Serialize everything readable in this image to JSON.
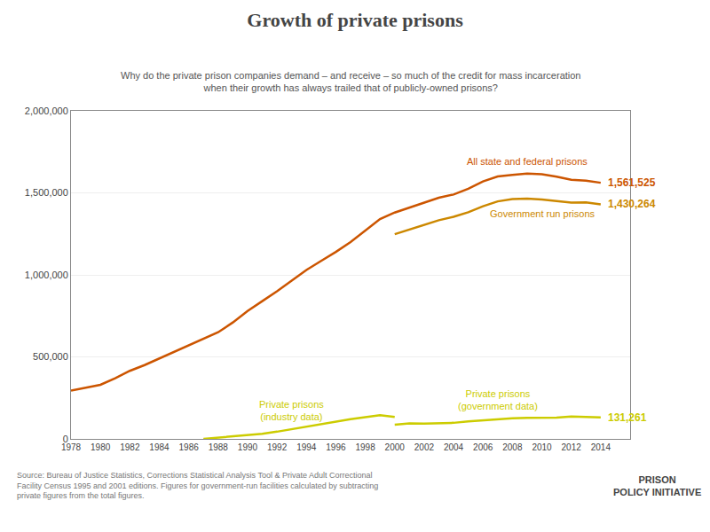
{
  "chart_data": {
    "type": "line",
    "title": "Growth of private prisons",
    "subtitle": "Why do the private prison companies demand – and receive – so much of the credit for mass incarceration\nwhen their growth has always trailed that of publicly-owned prisons?",
    "series": [
      {
        "name": "All state and federal prisons",
        "color": "#cc5500",
        "x": [
          1978,
          1979,
          1980,
          1981,
          1982,
          1983,
          1984,
          1985,
          1986,
          1987,
          1988,
          1989,
          1990,
          1991,
          1992,
          1993,
          1994,
          1995,
          1996,
          1997,
          1998,
          1999,
          2000,
          2001,
          2002,
          2003,
          2004,
          2005,
          2006,
          2007,
          2008,
          2009,
          2010,
          2011,
          2012,
          2013,
          2014
        ],
        "values": [
          294000,
          310000,
          330000,
          370000,
          415000,
          450000,
          490000,
          530000,
          570000,
          610000,
          650000,
          710000,
          780000,
          840000,
          900000,
          965000,
          1030000,
          1085000,
          1140000,
          1200000,
          1270000,
          1340000,
          1380000,
          1410000,
          1440000,
          1470000,
          1490000,
          1525000,
          1570000,
          1600000,
          1610000,
          1617000,
          1613000,
          1599000,
          1580000,
          1574000,
          1561525
        ],
        "value_labels": [
          null,
          null,
          null,
          null,
          null,
          null,
          null,
          null,
          null,
          null,
          null,
          null,
          null,
          null,
          null,
          null,
          null,
          null,
          null,
          null,
          null,
          null,
          null,
          null,
          null,
          null,
          null,
          null,
          null,
          null,
          null,
          null,
          null,
          null,
          null,
          null,
          "1,561,525"
        ]
      },
      {
        "name": "Government run prisons",
        "color": "#cc8800",
        "x": [
          2000,
          2001,
          2002,
          2003,
          2004,
          2005,
          2006,
          2007,
          2008,
          2009,
          2010,
          2011,
          2012,
          2013,
          2014
        ],
        "values": [
          1248000,
          1275000,
          1305000,
          1333000,
          1354000,
          1382000,
          1418000,
          1448000,
          1462000,
          1465000,
          1460000,
          1448000,
          1440000,
          1442000,
          1430264
        ],
        "value_labels": [
          null,
          null,
          null,
          null,
          null,
          null,
          null,
          null,
          null,
          null,
          null,
          null,
          null,
          null,
          "1,430,264"
        ]
      },
      {
        "name": "Private prisons\n(industry data)",
        "color": "#cccc00",
        "x": [
          1987,
          1988,
          1989,
          1990,
          1991,
          1992,
          1993,
          1994,
          1995,
          1996,
          1997,
          1998,
          1999,
          2000
        ],
        "values": [
          0,
          7000,
          15000,
          22000,
          31000,
          44000,
          60000,
          76000,
          90000,
          105000,
          120000,
          132000,
          145000,
          134000
        ]
      },
      {
        "name": "Private prisons\n(government data)",
        "color": "#cccc00",
        "x": [
          2000,
          2001,
          2002,
          2003,
          2004,
          2005,
          2006,
          2007,
          2008,
          2009,
          2010,
          2011,
          2012,
          2013,
          2014
        ],
        "values": [
          87000,
          94000,
          93000,
          95000,
          98000,
          107000,
          113000,
          123000,
          126000,
          129000,
          128000,
          130000,
          137000,
          133000,
          131261
        ],
        "value_labels": [
          null,
          null,
          null,
          null,
          null,
          null,
          null,
          null,
          null,
          null,
          null,
          null,
          null,
          null,
          "131,261"
        ]
      }
    ],
    "annotations": [
      "Source: Bureau of Justice Statistics, Corrections Statistical Analysis Tool & Private Adult Correctional\nFacility Census 1995 and 2001 editions. Figures for government-run facilities calculated by subtracting\nprivate figures from the total figures.",
      "PRISON\nPOLICY INITIATIVE"
    ],
    "xlim": [
      1978,
      2016
    ],
    "xticks": [
      1978,
      1980,
      1982,
      1984,
      1986,
      1988,
      1990,
      1992,
      1994,
      1996,
      1998,
      2000,
      2002,
      2004,
      2006,
      2008,
      2010,
      2012,
      2014
    ],
    "ylim": [
      0,
      2000000
    ],
    "yticks": [
      0,
      {
        "value": 500000,
        "label": "500,000"
      },
      {
        "value": 1000000,
        "label": "1,000,000"
      },
      {
        "value": 1500000,
        "label": "1,500,000"
      },
      {
        "value": 2000000,
        "label": "2,000,000"
      }
    ],
    "grid": "y"
  }
}
